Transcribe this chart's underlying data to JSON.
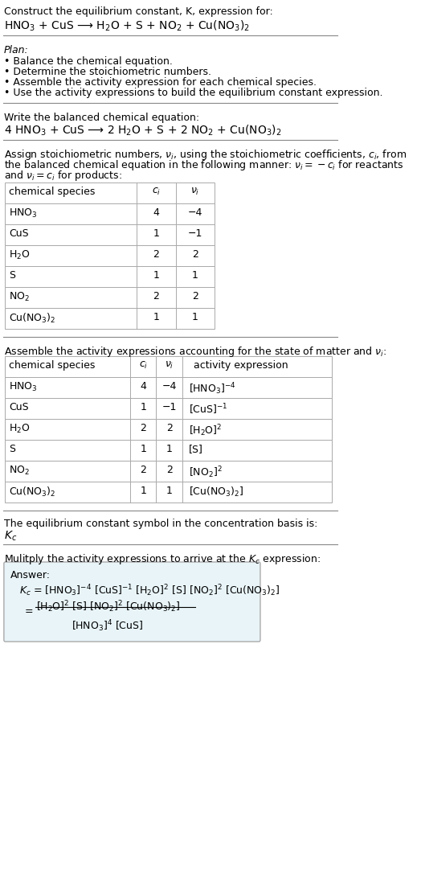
{
  "title_line1": "Construct the equilibrium constant, K, expression for:",
  "title_line2": "HNO$_3$ + CuS ⟶ H$_2$O + S + NO$_2$ + Cu(NO$_3$)$_2$",
  "plan_header": "Plan:",
  "plan_items": [
    "• Balance the chemical equation.",
    "• Determine the stoichiometric numbers.",
    "• Assemble the activity expression for each chemical species.",
    "• Use the activity expressions to build the equilibrium constant expression."
  ],
  "balanced_header": "Write the balanced chemical equation:",
  "balanced_eq": "4 HNO$_3$ + CuS ⟶ 2 H$_2$O + S + 2 NO$_2$ + Cu(NO$_3$)$_2$",
  "assign_header": "Assign stoichiometric numbers, $\\nu_i$, using the stoichiometric coefficients, $c_i$, from\nthe balanced chemical equation in the following manner: $\\nu_i = -c_i$ for reactants\nand $\\nu_i = c_i$ for products:",
  "table1_headers": [
    "chemical species",
    "$c_i$",
    "$\\nu_i$"
  ],
  "table1_rows": [
    [
      "HNO$_3$",
      "4",
      "−4"
    ],
    [
      "CuS",
      "1",
      "−1"
    ],
    [
      "H$_2$O",
      "2",
      "2"
    ],
    [
      "S",
      "1",
      "1"
    ],
    [
      "NO$_2$",
      "2",
      "2"
    ],
    [
      "Cu(NO$_3$)$_2$",
      "1",
      "1"
    ]
  ],
  "assemble_header": "Assemble the activity expressions accounting for the state of matter and $\\nu_i$:",
  "table2_headers": [
    "chemical species",
    "$c_i$",
    "$\\nu_i$",
    "activity expression"
  ],
  "table2_rows": [
    [
      "HNO$_3$",
      "4",
      "−4",
      "[HNO$_3$]$^{-4}$"
    ],
    [
      "CuS",
      "1",
      "−1",
      "[CuS]$^{-1}$"
    ],
    [
      "H$_2$O",
      "2",
      "2",
      "[H$_2$O]$^2$"
    ],
    [
      "S",
      "1",
      "1",
      "[S]"
    ],
    [
      "NO$_2$",
      "2",
      "2",
      "[NO$_2$]$^2$"
    ],
    [
      "Cu(NO$_3$)$_2$",
      "1",
      "1",
      "[Cu(NO$_3$)$_2$]"
    ]
  ],
  "kc_header": "The equilibrium constant symbol in the concentration basis is:",
  "kc_symbol": "$K_c$",
  "multiply_header": "Mulitply the activity expressions to arrive at the $K_c$ expression:",
  "answer_label": "Answer:",
  "answer_line1": "$K_c$ = [HNO$_3$]$^{-4}$ [CuS]$^{-1}$ [H$_2$O]$^2$ [S] [NO$_2$]$^2$ [Cu(NO$_3$)$_2$]",
  "answer_eq_line2_num": "[H$_2$O]$^2$ [S] [NO$_2$]$^2$ [Cu(NO$_3$)$_2$]",
  "answer_eq_line2_den": "[HNO$_3$]$^4$ [CuS]",
  "bg_color": "#ffffff",
  "text_color": "#000000",
  "table_border_color": "#aaaaaa",
  "answer_box_color": "#e8f4f8",
  "answer_box_border": "#aaaaaa",
  "font_size": 9,
  "title_font_size": 10
}
